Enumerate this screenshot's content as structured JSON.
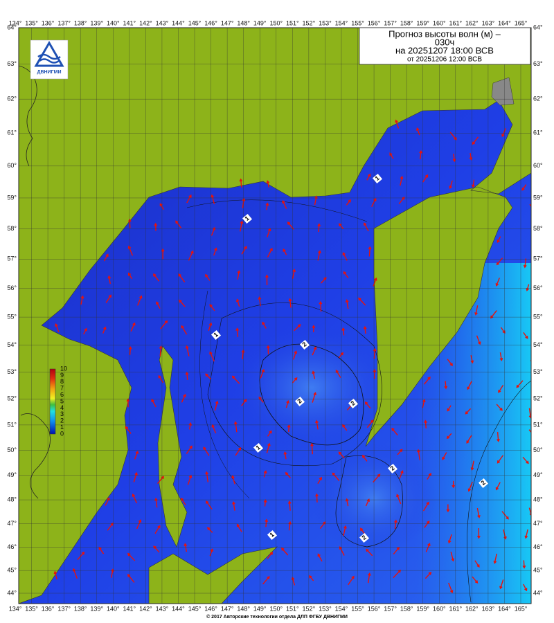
{
  "header": {
    "title_line1": "Прогноз высоты волн (м) –",
    "title_line2": "030ч",
    "title_line3": "на 20251207 18:00 ВСВ",
    "subtitle": "от 20251206 12:00 ВСВ"
  },
  "logo": {
    "text": "ДВНИГМИ"
  },
  "axes": {
    "longitude_labels": [
      "134°",
      "135°",
      "136°",
      "137°",
      "138°",
      "139°",
      "140°",
      "141°",
      "142°",
      "143°",
      "144°",
      "145°",
      "146°",
      "147°",
      "148°",
      "149°",
      "150°",
      "151°",
      "152°",
      "153°",
      "154°",
      "155°",
      "156°",
      "157°",
      "158°",
      "159°",
      "160°",
      "161°",
      "162°",
      "163°",
      "164°",
      "165°"
    ],
    "latitude_labels": [
      "64°",
      "63°",
      "62°",
      "61°",
      "60°",
      "59°",
      "58°",
      "57°",
      "56°",
      "55°",
      "54°",
      "53°",
      "52°",
      "51°",
      "50°",
      "49°",
      "48°",
      "47°",
      "46°",
      "45°",
      "44°"
    ]
  },
  "colorbar": {
    "labels": [
      "10",
      "9",
      "8",
      "7",
      "6",
      "5",
      "4",
      "3",
      "2",
      "1",
      "0"
    ]
  },
  "contour_labels": [
    "1",
    "1",
    "1",
    "1",
    "1",
    "2",
    "2",
    "2",
    "2",
    "2",
    "2"
  ],
  "footer": "© 2017 Авторские технологии отдела ДЛП ФГБУ ДВНИГМИ"
}
